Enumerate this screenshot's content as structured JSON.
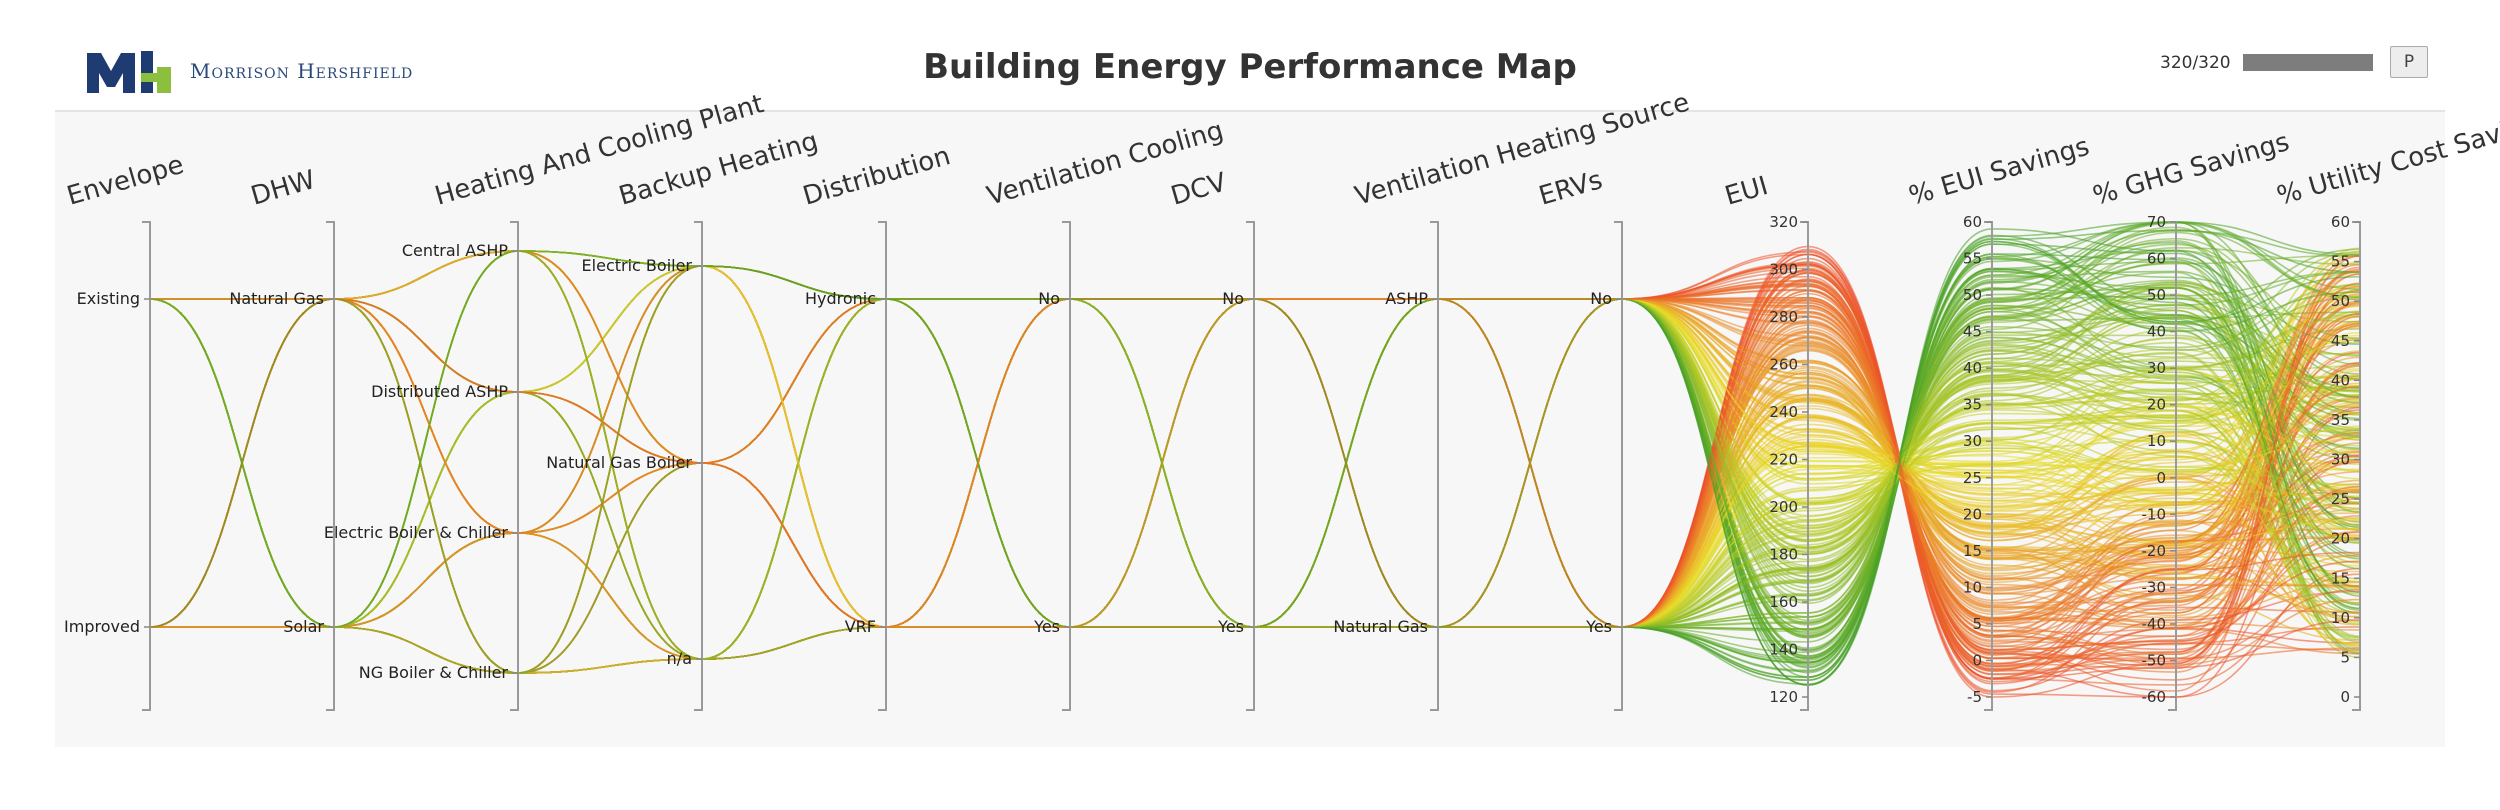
{
  "header": {
    "company": "Morrison Hershfield",
    "title": "Building Energy Performance Map",
    "counter": "320/320",
    "progress": 1.0,
    "button_label": "P"
  },
  "colors": {
    "brand_navy": "#1e3c72",
    "brand_green": "#8dbf3f",
    "scale_low": "#3e9e28",
    "scale_mid": "#e9de28",
    "scale_high": "#ec3b28",
    "background": "#f7f7f7"
  },
  "chart_data": {
    "type": "parallel-coordinates",
    "title": "Building Energy Performance Map",
    "record_count": 320,
    "color_by": "EUI",
    "axes": [
      {
        "name": "Envelope",
        "type": "categorical",
        "categories": [
          "Existing",
          "Improved"
        ]
      },
      {
        "name": "DHW",
        "type": "categorical",
        "categories": [
          "Natural Gas",
          "Solar"
        ]
      },
      {
        "name": "Heating And Cooling Plant",
        "type": "categorical",
        "categories": [
          "Central ASHP",
          "Distributed ASHP",
          "Electric Boiler & Chiller",
          "NG Boiler & Chiller"
        ]
      },
      {
        "name": "Backup Heating",
        "type": "categorical",
        "categories": [
          "Electric Boiler",
          "Natural Gas Boiler",
          "n/a"
        ]
      },
      {
        "name": "Distribution",
        "type": "categorical",
        "categories": [
          "Hydronic",
          "VRF"
        ]
      },
      {
        "name": "Ventilation Cooling",
        "type": "categorical",
        "categories": [
          "No",
          "Yes"
        ]
      },
      {
        "name": "DCV",
        "type": "categorical",
        "categories": [
          "No",
          "Yes"
        ]
      },
      {
        "name": "Ventilation Heating Source",
        "type": "categorical",
        "categories": [
          "ASHP",
          "Natural Gas"
        ]
      },
      {
        "name": "ERVs",
        "type": "categorical",
        "categories": [
          "No",
          "Yes"
        ]
      },
      {
        "name": "EUI",
        "type": "numeric",
        "range": [
          120,
          320
        ],
        "ticks": [
          120,
          140,
          160,
          180,
          200,
          220,
          240,
          260,
          280,
          300,
          320
        ]
      },
      {
        "name": "% EUI Savings",
        "type": "numeric",
        "range": [
          -5,
          60
        ],
        "ticks": [
          -5,
          0,
          5,
          10,
          15,
          20,
          25,
          30,
          35,
          40,
          45,
          50,
          55,
          60
        ]
      },
      {
        "name": "% GHG Savings",
        "type": "numeric",
        "range": [
          -60,
          70
        ],
        "ticks": [
          -60,
          -50,
          -40,
          -30,
          -20,
          -10,
          0,
          10,
          20,
          30,
          40,
          50,
          60,
          70
        ]
      },
      {
        "name": "% Utility Cost Savings",
        "type": "numeric",
        "range": [
          0,
          60
        ],
        "ticks": [
          0,
          5,
          10,
          15,
          20,
          25,
          30,
          35,
          40,
          45,
          50,
          55,
          60
        ]
      }
    ]
  }
}
